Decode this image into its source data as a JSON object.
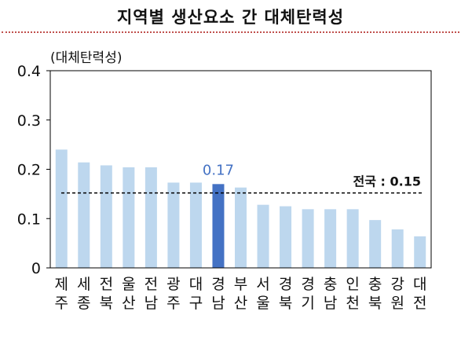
{
  "title": "지역별 생산요소 간 대체탄력성",
  "chart_data": {
    "type": "bar",
    "title": "지역별 생산요소 간 대체탄력성",
    "ylabel": "(대체탄력성)",
    "xlabel": "",
    "ylim": [
      0,
      0.4
    ],
    "yticks": [
      "0",
      "0.1",
      "0.2",
      "0.3",
      "0.4"
    ],
    "categories": [
      [
        "제",
        "주"
      ],
      [
        "세",
        "종"
      ],
      [
        "전",
        "북"
      ],
      [
        "울",
        "산"
      ],
      [
        "전",
        "남"
      ],
      [
        "광",
        "주"
      ],
      [
        "대",
        "구"
      ],
      [
        "경",
        "남"
      ],
      [
        "부",
        "산"
      ],
      [
        "서",
        "울"
      ],
      [
        "경",
        "북"
      ],
      [
        "경",
        "기"
      ],
      [
        "충",
        "남"
      ],
      [
        "인",
        "천"
      ],
      [
        "충",
        "북"
      ],
      [
        "강",
        "원"
      ],
      [
        "대",
        "전"
      ]
    ],
    "values": [
      0.24,
      0.214,
      0.208,
      0.204,
      0.204,
      0.173,
      0.173,
      0.17,
      0.163,
      0.128,
      0.125,
      0.119,
      0.119,
      0.119,
      0.097,
      0.078,
      0.064
    ],
    "highlight_index": 7,
    "highlight_label": "0.17",
    "reference_line": {
      "value": 0.152,
      "label": "전국 : 0.15"
    },
    "colors": {
      "bar": "#bdd7ee",
      "highlight": "#4472c4",
      "highlight_label": "#4472c4",
      "axis": "#000000",
      "reference": "#000000"
    }
  }
}
